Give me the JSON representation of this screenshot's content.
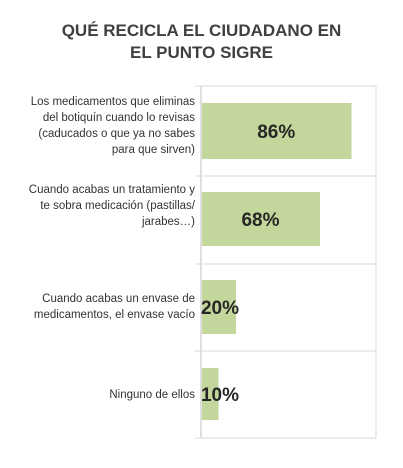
{
  "chart_data": {
    "type": "bar",
    "orientation": "horizontal",
    "title_lines": [
      "QUÉ RECICLA EL CIUDADANO EN",
      "EL PUNTO SIGRE"
    ],
    "categories": [
      [
        "Los medicamentos que eliminas",
        "del botiquín cuando lo revisas",
        "(caducados o que ya no sabes",
        "para que sirven)"
      ],
      [
        "Cuando acabas un tratamiento y",
        "te sobra medicación (pastillas/",
        "jarabes…)"
      ],
      [
        "Cuando acabas un envase de",
        "medicamentos, el envase vacío"
      ],
      [
        "Ninguno de ellos"
      ]
    ],
    "values": [
      86,
      68,
      20,
      10
    ],
    "data_labels": [
      "86%",
      "68%",
      "20%",
      "10%"
    ],
    "bar_color": "#c3d69b",
    "xlim": [
      0,
      100
    ],
    "grid": true
  }
}
